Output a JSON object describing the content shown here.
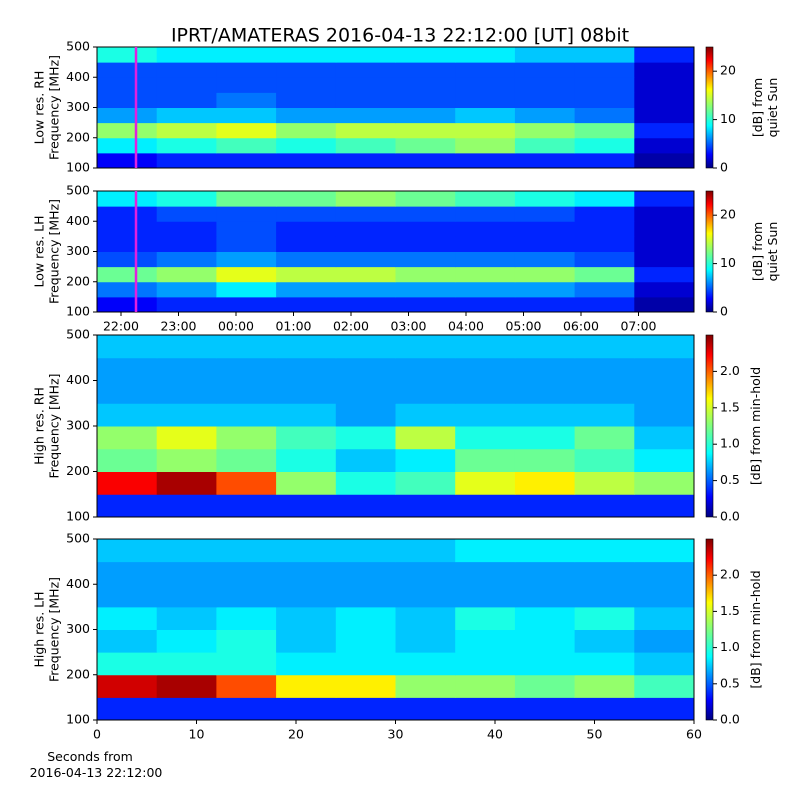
{
  "chart_data": [
    {
      "type": "heatmap",
      "title": "IPRT/AMATERAS 2016-04-13 22:12:00 [UT]   08bit",
      "ylabel": [
        "Low res. RH",
        "Frequency [MHz]"
      ],
      "ylim": [
        100,
        500
      ],
      "yticks": [
        100,
        200,
        300,
        400,
        500
      ],
      "colorbar": {
        "label": [
          "[dB] from",
          "quiet Sun"
        ],
        "lim": [
          0,
          25
        ],
        "ticks": [
          0,
          10,
          20
        ]
      },
      "values": [
        [
          3,
          4,
          4,
          4,
          4,
          4,
          4,
          4,
          4,
          1
        ],
        [
          9,
          10,
          11,
          10,
          11,
          12,
          13,
          11,
          10,
          2
        ],
        [
          13,
          14,
          15,
          13,
          14,
          14,
          14,
          13,
          12,
          4
        ],
        [
          7,
          8,
          8,
          7,
          7,
          7,
          8,
          7,
          6,
          2
        ],
        [
          5,
          5,
          6,
          5,
          5,
          5,
          5,
          5,
          5,
          2
        ],
        [
          5,
          5,
          5,
          5,
          5,
          5,
          5,
          5,
          5,
          2
        ],
        [
          5,
          5,
          5,
          5,
          5,
          5,
          5,
          5,
          5,
          2
        ],
        [
          10,
          9,
          9,
          9,
          9,
          9,
          9,
          8,
          8,
          4
        ]
      ]
    },
    {
      "type": "heatmap",
      "ylabel": [
        "Low res. LH",
        "Frequency [MHz]"
      ],
      "ylim": [
        100,
        500
      ],
      "yticks": [
        100,
        200,
        300,
        400,
        500
      ],
      "xticks": [
        "22:00",
        "23:00",
        "00:00",
        "01:00",
        "02:00",
        "03:00",
        "04:00",
        "05:00",
        "06:00",
        "07:00"
      ],
      "colorbar": {
        "label": [
          "[dB] from",
          "quiet Sun"
        ],
        "lim": [
          0,
          25
        ],
        "ticks": [
          0,
          10,
          20
        ]
      },
      "values": [
        [
          3,
          4,
          4,
          4,
          4,
          4,
          4,
          4,
          4,
          1
        ],
        [
          6,
          7,
          9,
          7,
          7,
          7,
          7,
          7,
          6,
          2
        ],
        [
          12,
          13,
          15,
          14,
          14,
          13,
          13,
          13,
          12,
          4
        ],
        [
          5,
          6,
          7,
          6,
          6,
          6,
          6,
          6,
          5,
          2
        ],
        [
          4,
          4,
          5,
          4,
          4,
          4,
          4,
          4,
          4,
          2
        ],
        [
          4,
          4,
          5,
          4,
          4,
          4,
          4,
          4,
          4,
          2
        ],
        [
          4,
          5,
          5,
          5,
          5,
          5,
          5,
          5,
          4,
          2
        ],
        [
          9,
          10,
          12,
          12,
          13,
          12,
          11,
          10,
          9,
          4
        ]
      ]
    },
    {
      "type": "heatmap",
      "ylabel": [
        "High res. RH",
        "Frequency [MHz]"
      ],
      "ylim": [
        100,
        500
      ],
      "yticks": [
        100,
        200,
        300,
        400,
        500
      ],
      "colorbar": {
        "label": [
          "[dB] from min-hold"
        ],
        "lim": [
          0,
          2.5
        ],
        "ticks": [
          {
            "value": 0,
            "label": "0.0"
          },
          {
            "value": 0.5,
            "label": "0.5"
          },
          {
            "value": 1,
            "label": "1.0"
          },
          {
            "value": 1.5,
            "label": "1.5"
          },
          {
            "value": 2,
            "label": "2.0"
          }
        ]
      },
      "values": [
        [
          0.4,
          0.4,
          0.4,
          0.4,
          0.4,
          0.4,
          0.4,
          0.4,
          0.4,
          0.4
        ],
        [
          2.2,
          2.4,
          2.0,
          1.3,
          1.0,
          1.1,
          1.5,
          1.6,
          1.4,
          1.3
        ],
        [
          1.2,
          1.3,
          1.2,
          1.0,
          0.8,
          0.9,
          1.2,
          1.2,
          1.1,
          0.9
        ],
        [
          1.3,
          1.5,
          1.3,
          1.1,
          1.0,
          1.4,
          1.0,
          1.0,
          1.2,
          0.8
        ],
        [
          0.8,
          0.8,
          0.8,
          0.8,
          0.7,
          0.8,
          0.8,
          0.8,
          0.8,
          0.7
        ],
        [
          0.7,
          0.7,
          0.7,
          0.7,
          0.7,
          0.7,
          0.7,
          0.7,
          0.7,
          0.7
        ],
        [
          0.7,
          0.7,
          0.7,
          0.7,
          0.7,
          0.7,
          0.7,
          0.7,
          0.7,
          0.7
        ],
        [
          0.8,
          0.8,
          0.8,
          0.8,
          0.8,
          0.8,
          0.8,
          0.8,
          0.8,
          0.8
        ]
      ]
    },
    {
      "type": "heatmap",
      "ylabel": [
        "High res. LH",
        "Frequency [MHz]"
      ],
      "ylim": [
        100,
        500
      ],
      "yticks": [
        100,
        200,
        300,
        400,
        500
      ],
      "xlabel": [
        "Seconds from",
        "2016-04-13 22:12:00"
      ],
      "xlim": [
        0,
        60
      ],
      "xticks": [
        0,
        10,
        20,
        30,
        40,
        50,
        60
      ],
      "colorbar": {
        "label": [
          "[dB] from min-hold"
        ],
        "lim": [
          0,
          2.5
        ],
        "ticks": [
          {
            "value": 0,
            "label": "0.0"
          },
          {
            "value": 0.5,
            "label": "0.5"
          },
          {
            "value": 1,
            "label": "1.0"
          },
          {
            "value": 1.5,
            "label": "1.5"
          },
          {
            "value": 2,
            "label": "2.0"
          }
        ]
      },
      "values": [
        [
          0.4,
          0.4,
          0.4,
          0.4,
          0.4,
          0.4,
          0.4,
          0.4,
          0.4,
          0.4
        ],
        [
          2.3,
          2.4,
          2.0,
          1.6,
          1.6,
          1.3,
          1.3,
          1.2,
          1.3,
          1.1
        ],
        [
          1.0,
          1.0,
          1.0,
          0.9,
          0.9,
          0.9,
          0.9,
          0.9,
          0.9,
          0.8
        ],
        [
          0.8,
          0.9,
          1.0,
          0.8,
          0.9,
          0.8,
          0.9,
          0.9,
          0.8,
          0.7
        ],
        [
          0.9,
          0.8,
          0.9,
          0.8,
          0.9,
          0.8,
          1.0,
          0.9,
          1.0,
          0.8
        ],
        [
          0.7,
          0.7,
          0.7,
          0.7,
          0.7,
          0.7,
          0.7,
          0.7,
          0.7,
          0.7
        ],
        [
          0.7,
          0.7,
          0.7,
          0.7,
          0.7,
          0.7,
          0.7,
          0.7,
          0.7,
          0.7
        ],
        [
          0.8,
          0.8,
          0.8,
          0.8,
          0.8,
          0.8,
          0.9,
          0.9,
          0.9,
          0.9
        ]
      ]
    }
  ]
}
